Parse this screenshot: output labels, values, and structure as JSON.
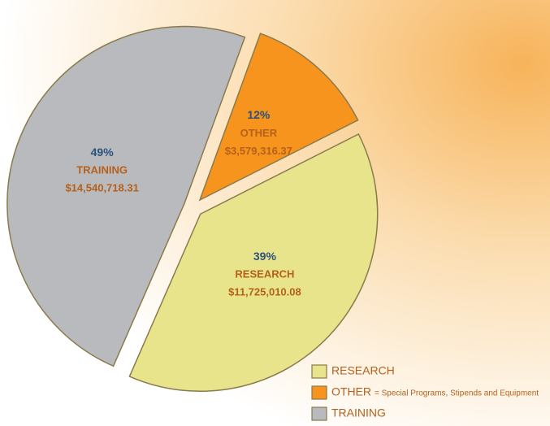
{
  "chart_data": {
    "type": "pie",
    "categories": [
      "OTHER",
      "RESEARCH",
      "TRAINING"
    ],
    "values": [
      12,
      39,
      49
    ],
    "value_labels": [
      "12%",
      "39%",
      "49%"
    ],
    "amounts": [
      3579316.37,
      11725010.08,
      14540718.31
    ],
    "amount_labels": [
      "$3,579,316.37",
      "$11,725,010.08",
      "$14,540,718.31"
    ],
    "colors": [
      "#f7941d",
      "#e7e48c",
      "#b9babe"
    ],
    "legend": {
      "position": "lower right",
      "order": [
        1,
        0,
        2
      ],
      "notes": {
        "0": "= Special Programs, Stipends and Equipment"
      }
    }
  }
}
